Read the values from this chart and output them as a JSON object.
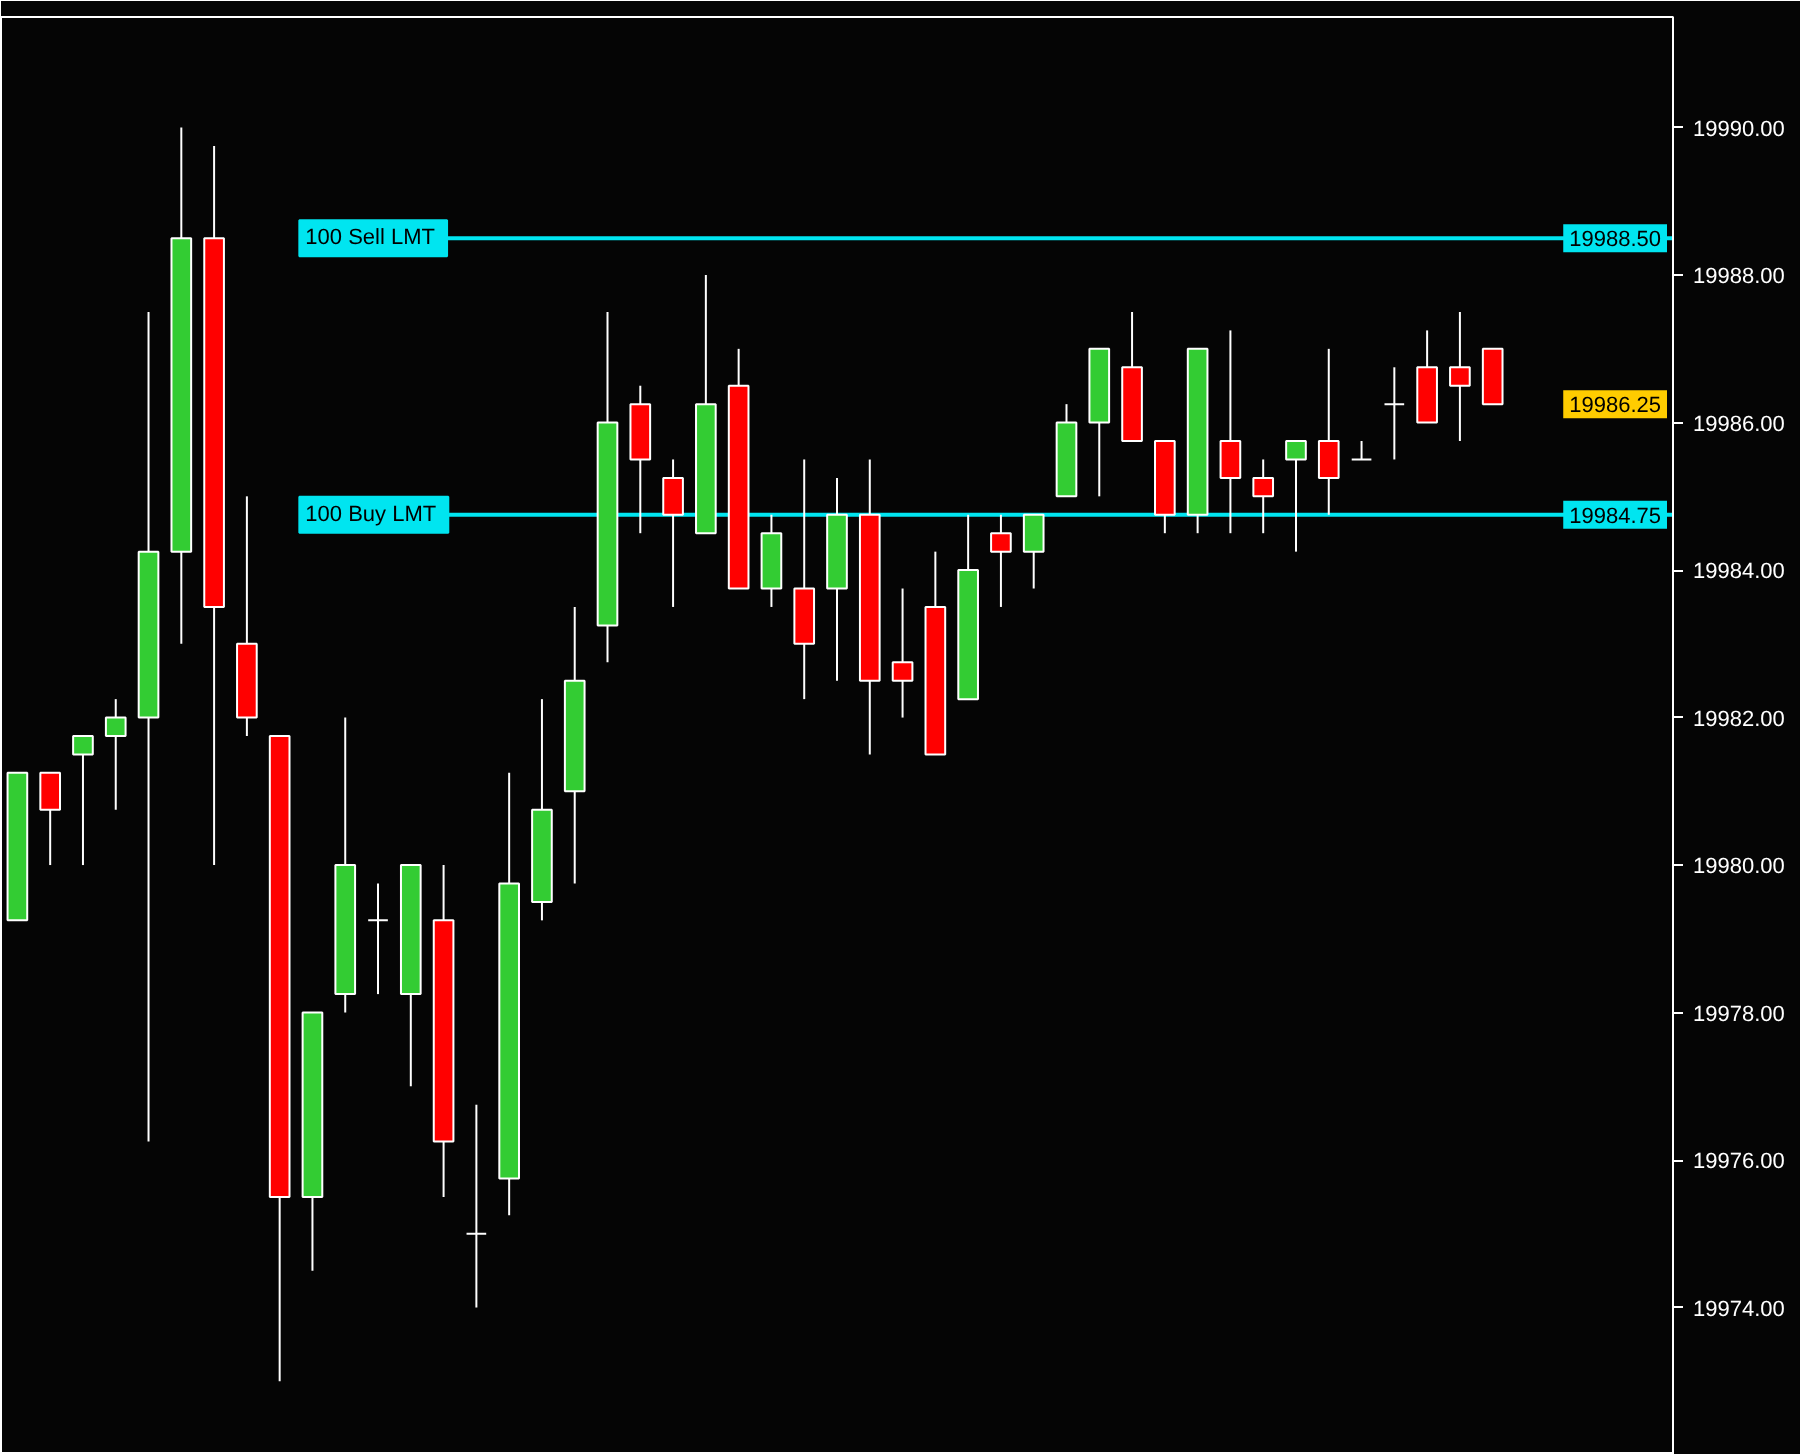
{
  "chart_data": {
    "type": "candlestick",
    "categories": [
      null,
      null,
      null,
      null,
      null,
      null,
      null,
      null,
      null,
      null,
      null,
      null,
      null,
      null,
      null,
      null,
      null,
      null,
      null,
      null,
      null,
      null,
      null,
      null,
      null,
      null,
      null,
      null,
      null,
      null,
      null,
      null,
      null,
      null,
      null,
      null,
      null,
      null,
      null,
      null,
      null,
      null,
      null,
      null,
      null,
      null,
      null,
      null,
      null,
      null,
      null
    ],
    "ohlc": [
      [
        19979.25,
        19981.25,
        19979.25,
        19981.25
      ],
      [
        19981.25,
        19981.25,
        19980.0,
        19980.75
      ],
      [
        19981.5,
        19981.75,
        19980.0,
        19981.75
      ],
      [
        19981.75,
        19982.25,
        19980.75,
        19982.0
      ],
      [
        19982.0,
        19987.5,
        19976.25,
        19984.25
      ],
      [
        19984.25,
        19990.0,
        19983.0,
        19988.5
      ],
      [
        19988.5,
        19989.75,
        19980.0,
        19983.5
      ],
      [
        19983.0,
        19985.0,
        19981.75,
        19982.0
      ],
      [
        19981.75,
        19981.75,
        19973.0,
        19975.5
      ],
      [
        19975.5,
        19978.0,
        19974.5,
        19978.0
      ],
      [
        19978.25,
        19982.0,
        19978.0,
        19980.0
      ],
      [
        19979.25,
        19979.75,
        19978.25,
        19979.25
      ],
      [
        19978.25,
        19980.0,
        19977.0,
        19980.0
      ],
      [
        19979.25,
        19980.0,
        19975.5,
        19976.25
      ],
      [
        19975.0,
        19976.75,
        19974.0,
        19975.0
      ],
      [
        19975.75,
        19981.25,
        19975.25,
        19979.75
      ],
      [
        19979.5,
        19982.25,
        19979.25,
        19980.75
      ],
      [
        19981.0,
        19983.5,
        19979.75,
        19982.5
      ],
      [
        19983.25,
        19987.5,
        19982.75,
        19986.0
      ],
      [
        19986.25,
        19986.5,
        19984.5,
        19985.5
      ],
      [
        19985.25,
        19985.5,
        19983.5,
        19984.75
      ],
      [
        19984.5,
        19988.0,
        19984.5,
        19986.25
      ],
      [
        19986.5,
        19987.0,
        19983.75,
        19983.75
      ],
      [
        19983.75,
        19984.75,
        19983.5,
        19984.5
      ],
      [
        19983.75,
        19985.5,
        19982.25,
        19983.0
      ],
      [
        19983.75,
        19985.25,
        19982.5,
        19984.75
      ],
      [
        19984.75,
        19985.5,
        19981.5,
        19982.5
      ],
      [
        19982.75,
        19983.75,
        19982.0,
        19982.5
      ],
      [
        19983.5,
        19984.25,
        19981.5,
        19981.5
      ],
      [
        19982.25,
        19984.75,
        19982.25,
        19984.0
      ],
      [
        19984.5,
        19984.75,
        19983.5,
        19984.25
      ],
      [
        19984.25,
        19984.75,
        19983.75,
        19984.75
      ],
      [
        19985.0,
        19986.25,
        19985.0,
        19986.0
      ],
      [
        19986.0,
        19987.0,
        19985.0,
        19987.0
      ],
      [
        19986.75,
        19987.5,
        19985.75,
        19985.75
      ],
      [
        19985.75,
        19985.75,
        19984.5,
        19984.75
      ],
      [
        19984.75,
        19987.0,
        19984.5,
        19987.0
      ],
      [
        19985.75,
        19987.25,
        19984.5,
        19985.25
      ],
      [
        19985.25,
        19985.5,
        19984.5,
        19985.0
      ],
      [
        19985.5,
        19985.75,
        19984.25,
        19985.75
      ],
      [
        19985.75,
        19987.0,
        19984.75,
        19985.25
      ],
      [
        19985.5,
        19985.75,
        19985.5,
        19985.5
      ],
      [
        19986.25,
        19986.75,
        19985.5,
        19986.25
      ],
      [
        19986.75,
        19987.25,
        19986.0,
        19986.0
      ],
      [
        19986.75,
        19987.5,
        19985.75,
        19986.5
      ],
      [
        19987.0,
        19987.0,
        19986.25,
        19986.25
      ],
      null,
      null,
      null,
      null,
      null
    ],
    "colors": [
      "#33cc33",
      "#ff0000",
      "#33cc33",
      "#33cc33",
      "#33cc33",
      "#33cc33",
      "#ff0000",
      "#ff0000",
      "#ff0000",
      "#33cc33",
      "#33cc33",
      "#ffffff",
      "#33cc33",
      "#ff0000",
      "#ffffff",
      "#33cc33",
      "#33cc33",
      "#33cc33",
      "#33cc33",
      "#ff0000",
      "#ff0000",
      "#33cc33",
      "#ff0000",
      "#33cc33",
      "#ff0000",
      "#33cc33",
      "#ff0000",
      "#ff0000",
      "#ff0000",
      "#33cc33",
      "#ff0000",
      "#33cc33",
      "#33cc33",
      "#33cc33",
      "#ff0000",
      "#ff0000",
      "#33cc33",
      "#ff0000",
      "#ff0000",
      "#33cc33",
      "#ff0000",
      "#ffffff",
      "#ffffff",
      "#ff0000",
      "#ff0000",
      "#ff0000",
      null,
      null,
      null,
      null,
      null
    ],
    "ylim": [
      19972.0,
      19991.5
    ],
    "yticks": [
      {
        "value": 19974,
        "label": "19974.00"
      },
      {
        "value": 19976,
        "label": "19976.00"
      },
      {
        "value": 19978,
        "label": "19978.00"
      },
      {
        "value": 19980,
        "label": "19980.00"
      },
      {
        "value": 19982,
        "label": "19982.00"
      },
      {
        "value": 19984,
        "label": "19984.00"
      },
      {
        "value": 19986,
        "label": "19986.00"
      },
      {
        "value": 19988,
        "label": "19988.00"
      },
      {
        "value": 19990,
        "label": "19990.00"
      }
    ],
    "tick_labels": "y",
    "ref_lines": [
      {
        "axis": "y",
        "value": 19988.5,
        "label": "100  Sell LMT",
        "color": "#00e5f0"
      },
      {
        "axis": "y",
        "value": 19984.75,
        "label": "100  Buy LMT",
        "color": "#00e5f0"
      }
    ],
    "annotations": [
      {
        "text": "19988.50",
        "y": 19988.5
      },
      "19986.25",
      {
        "text": "19984.75",
        "y": 19984.75
      }
    ]
  }
}
